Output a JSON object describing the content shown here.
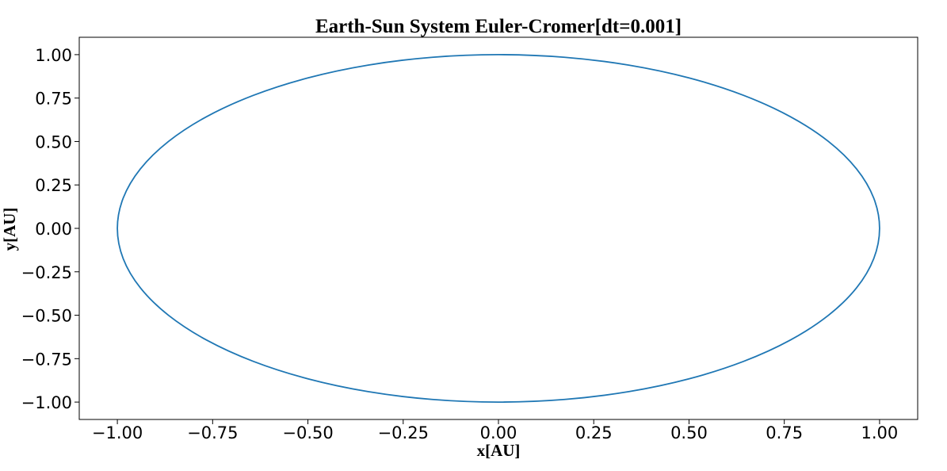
{
  "chart_data": {
    "type": "line",
    "title": "Earth-Sun System Euler-Cromer[dt=0.001]",
    "xlabel": "x[AU]",
    "ylabel": "y[AU]",
    "xlim": [
      -1.1,
      1.1
    ],
    "ylim": [
      -1.1,
      1.1
    ],
    "xticks": [
      -1.0,
      -0.75,
      -0.5,
      -0.25,
      0.0,
      0.25,
      0.5,
      0.75,
      1.0
    ],
    "yticks": [
      -1.0,
      -0.75,
      -0.5,
      -0.25,
      0.0,
      0.25,
      0.5,
      0.75,
      1.0
    ],
    "xtick_labels": [
      "−1.00",
      "−0.75",
      "−0.50",
      "−0.25",
      "0.00",
      "0.25",
      "0.50",
      "0.75",
      "1.00"
    ],
    "ytick_labels": [
      "−1.00",
      "−0.75",
      "−0.50",
      "−0.25",
      "0.00",
      "0.25",
      "0.50",
      "0.75",
      "1.00"
    ],
    "grid": false,
    "series": [
      {
        "color": "#1f77b4",
        "x": [
          1.0,
          0.9848,
          0.9397,
          0.866,
          0.766,
          0.6428,
          0.5,
          0.342,
          0.1736,
          0.0,
          -0.1736,
          -0.342,
          -0.5,
          -0.6428,
          -0.766,
          -0.866,
          -0.9397,
          -0.9848,
          -1.0,
          -0.9848,
          -0.9397,
          -0.866,
          -0.766,
          -0.6428,
          -0.5,
          -0.342,
          -0.1736,
          0.0,
          0.1736,
          0.342,
          0.5,
          0.6428,
          0.766,
          0.866,
          0.9397,
          0.9848,
          1.0
        ],
        "y": [
          0.0,
          0.1736,
          0.342,
          0.5,
          0.6428,
          0.766,
          0.866,
          0.9397,
          0.9848,
          1.0,
          0.9848,
          0.9397,
          0.866,
          0.766,
          0.6428,
          0.5,
          0.342,
          0.1736,
          0.0,
          -0.1736,
          -0.342,
          -0.5,
          -0.6428,
          -0.766,
          -0.866,
          -0.9397,
          -0.9848,
          -1.0,
          -0.9848,
          -0.9397,
          -0.866,
          -0.766,
          -0.6428,
          -0.5,
          -0.342,
          -0.1736,
          0.0
        ]
      }
    ]
  }
}
